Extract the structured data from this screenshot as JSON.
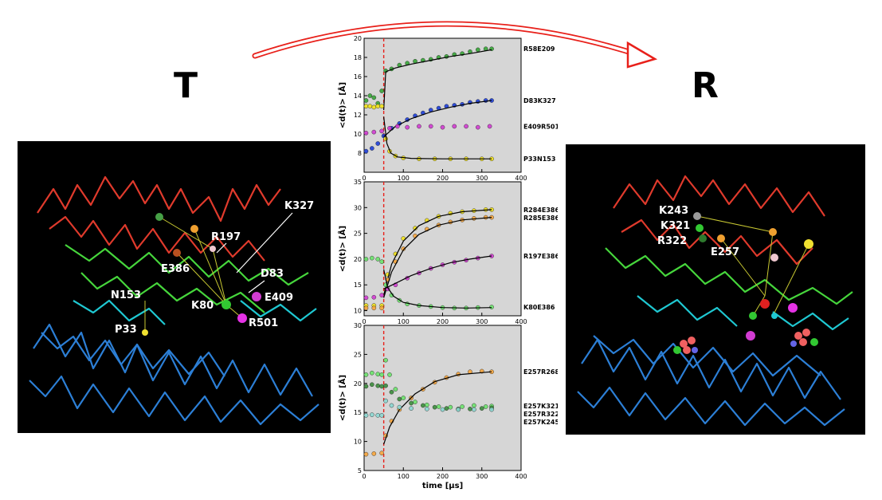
{
  "states": {
    "left": "T",
    "right": "R"
  },
  "structure_left": {
    "labels": [
      "K327",
      "R197",
      "E386",
      "D83",
      "N153",
      "K80",
      "E409",
      "R501",
      "P33"
    ]
  },
  "structure_right": {
    "labels": [
      "K243",
      "K321",
      "R322",
      "E257"
    ]
  },
  "colors": {
    "plot_bg": "#d6d6d6",
    "fit": "#000000",
    "marker": "#e8201a",
    "green": "#37a537",
    "blue": "#1d3ed8",
    "magenta": "#d23cd2",
    "yellow": "#f2e21a",
    "orange": "#f7a53c",
    "lightgreen": "#6ce36c",
    "darkgreen": "#3c8c3c",
    "cyan": "#8cd7d2"
  },
  "chart_data": [
    {
      "type": "scatter",
      "ylabel": "<d(t)> [Å]",
      "xlim": [
        0,
        400
      ],
      "ylim": [
        6,
        20
      ],
      "x_ticks": [
        0,
        100,
        200,
        300,
        400
      ],
      "y_ticks": [
        8,
        10,
        12,
        14,
        16,
        18,
        20
      ],
      "marker_x": 50,
      "series": [
        {
          "name": "R58E209",
          "color": "green",
          "points": [
            [
              5,
              13.5
            ],
            [
              15,
              14
            ],
            [
              25,
              13.8
            ],
            [
              35,
              13.2
            ],
            [
              45,
              14.5
            ],
            [
              55,
              16.6
            ],
            [
              70,
              16.8
            ],
            [
              90,
              17.2
            ],
            [
              110,
              17.4
            ],
            [
              130,
              17.6
            ],
            [
              150,
              17.7
            ],
            [
              170,
              17.8
            ],
            [
              190,
              18.0
            ],
            [
              210,
              18.1
            ],
            [
              230,
              18.3
            ],
            [
              250,
              18.4
            ],
            [
              270,
              18.6
            ],
            [
              290,
              18.8
            ],
            [
              310,
              18.9
            ],
            [
              325,
              18.9
            ]
          ],
          "fit": [
            [
              50,
              12.5
            ],
            [
              55,
              16.5
            ],
            [
              80,
              16.9
            ],
            [
              120,
              17.3
            ],
            [
              170,
              17.7
            ],
            [
              220,
              18.1
            ],
            [
              270,
              18.4
            ],
            [
              325,
              18.8
            ]
          ]
        },
        {
          "name": "D83K327",
          "color": "blue",
          "points": [
            [
              5,
              8.2
            ],
            [
              20,
              8.5
            ],
            [
              35,
              9.0
            ],
            [
              50,
              9.8
            ],
            [
              70,
              10.6
            ],
            [
              90,
              11.1
            ],
            [
              110,
              11.5
            ],
            [
              130,
              11.9
            ],
            [
              150,
              12.2
            ],
            [
              170,
              12.5
            ],
            [
              190,
              12.7
            ],
            [
              210,
              12.9
            ],
            [
              230,
              13.0
            ],
            [
              250,
              13.1
            ],
            [
              270,
              13.3
            ],
            [
              290,
              13.4
            ],
            [
              310,
              13.5
            ],
            [
              325,
              13.5
            ]
          ],
          "fit": [
            [
              50,
              9.7
            ],
            [
              80,
              10.8
            ],
            [
              120,
              11.6
            ],
            [
              170,
              12.3
            ],
            [
              220,
              12.8
            ],
            [
              270,
              13.2
            ],
            [
              325,
              13.5
            ]
          ]
        },
        {
          "name": "E409R501",
          "color": "magenta",
          "points": [
            [
              5,
              10.1
            ],
            [
              25,
              10.2
            ],
            [
              45,
              10.3
            ],
            [
              65,
              10.6
            ],
            [
              85,
              10.8
            ],
            [
              110,
              10.7
            ],
            [
              140,
              10.8
            ],
            [
              170,
              10.8
            ],
            [
              200,
              10.7
            ],
            [
              230,
              10.8
            ],
            [
              260,
              10.8
            ],
            [
              290,
              10.7
            ],
            [
              320,
              10.8
            ]
          ],
          "fit": []
        },
        {
          "name": "P33N153",
          "color": "yellow",
          "points": [
            [
              5,
              12.9
            ],
            [
              15,
              12.9
            ],
            [
              25,
              12.8
            ],
            [
              35,
              12.9
            ],
            [
              45,
              12.9
            ],
            [
              55,
              9.5
            ],
            [
              65,
              8.2
            ],
            [
              80,
              7.7
            ],
            [
              100,
              7.5
            ],
            [
              140,
              7.4
            ],
            [
              180,
              7.4
            ],
            [
              220,
              7.4
            ],
            [
              260,
              7.4
            ],
            [
              300,
              7.4
            ],
            [
              325,
              7.4
            ]
          ],
          "fit": [
            [
              50,
              11.8
            ],
            [
              58,
              9.0
            ],
            [
              68,
              8.0
            ],
            [
              85,
              7.6
            ],
            [
              120,
              7.45
            ],
            [
              200,
              7.4
            ],
            [
              325,
              7.4
            ]
          ]
        }
      ]
    },
    {
      "type": "scatter",
      "ylabel": "<d(t)> [Å]",
      "xlim": [
        0,
        400
      ],
      "ylim": [
        9,
        35
      ],
      "x_ticks": [
        0,
        100,
        200,
        300,
        400
      ],
      "y_ticks": [
        10,
        15,
        20,
        25,
        30,
        35
      ],
      "marker_x": 50,
      "series": [
        {
          "name": "R284E386",
          "color": "yellow",
          "points": [
            [
              5,
              11
            ],
            [
              25,
              11
            ],
            [
              45,
              11
            ],
            [
              60,
              17
            ],
            [
              80,
              21
            ],
            [
              100,
              24
            ],
            [
              130,
              26
            ],
            [
              160,
              27.5
            ],
            [
              190,
              28.3
            ],
            [
              220,
              28.9
            ],
            [
              250,
              29.2
            ],
            [
              280,
              29.4
            ],
            [
              310,
              29.6
            ],
            [
              325,
              29.6
            ]
          ],
          "fit": [
            [
              50,
              13
            ],
            [
              70,
              19
            ],
            [
              100,
              23.5
            ],
            [
              140,
              26.5
            ],
            [
              190,
              28.3
            ],
            [
              250,
              29.2
            ],
            [
              325,
              29.6
            ]
          ]
        },
        {
          "name": "R285E386",
          "color": "orange",
          "points": [
            [
              5,
              10.5
            ],
            [
              25,
              10.5
            ],
            [
              45,
              10.5
            ],
            [
              60,
              16
            ],
            [
              80,
              19.5
            ],
            [
              100,
              22
            ],
            [
              130,
              24.5
            ],
            [
              160,
              25.8
            ],
            [
              190,
              26.6
            ],
            [
              220,
              27.2
            ],
            [
              250,
              27.6
            ],
            [
              280,
              27.9
            ],
            [
              310,
              28.1
            ],
            [
              325,
              28.1
            ]
          ],
          "fit": [
            [
              50,
              12.5
            ],
            [
              70,
              17.5
            ],
            [
              100,
              21.8
            ],
            [
              140,
              24.8
            ],
            [
              190,
              26.6
            ],
            [
              250,
              27.6
            ],
            [
              325,
              28.1
            ]
          ]
        },
        {
          "name": "R197E386",
          "color": "magenta",
          "points": [
            [
              5,
              12.5
            ],
            [
              25,
              12.6
            ],
            [
              45,
              13
            ],
            [
              60,
              14.2
            ],
            [
              80,
              15
            ],
            [
              110,
              16.3
            ],
            [
              140,
              17.3
            ],
            [
              170,
              18.2
            ],
            [
              200,
              18.9
            ],
            [
              230,
              19.4
            ],
            [
              260,
              19.8
            ],
            [
              290,
              20.2
            ],
            [
              325,
              20.6
            ]
          ],
          "fit": [
            [
              50,
              14.2
            ],
            [
              80,
              15.3
            ],
            [
              120,
              16.8
            ],
            [
              170,
              18.2
            ],
            [
              220,
              19.3
            ],
            [
              270,
              20.0
            ],
            [
              325,
              20.6
            ]
          ]
        },
        {
          "name": "K80E386",
          "color": "lightgreen",
          "points": [
            [
              5,
              20
            ],
            [
              20,
              20.2
            ],
            [
              35,
              20
            ],
            [
              45,
              19.5
            ],
            [
              55,
              15
            ],
            [
              70,
              13
            ],
            [
              90,
              12
            ],
            [
              110,
              11.3
            ],
            [
              140,
              11
            ],
            [
              170,
              10.8
            ],
            [
              200,
              10.6
            ],
            [
              230,
              10.5
            ],
            [
              260,
              10.5
            ],
            [
              290,
              10.6
            ],
            [
              325,
              10.7
            ]
          ],
          "fit": [
            [
              50,
              18
            ],
            [
              60,
              14.5
            ],
            [
              75,
              12.8
            ],
            [
              100,
              11.6
            ],
            [
              140,
              11
            ],
            [
              200,
              10.6
            ],
            [
              260,
              10.5
            ],
            [
              325,
              10.6
            ]
          ]
        }
      ]
    },
    {
      "type": "scatter",
      "xlabel": "time [μs]",
      "ylabel": "<d(t)> [Å]",
      "xlim": [
        0,
        400
      ],
      "ylim": [
        5,
        30
      ],
      "x_ticks": [
        0,
        100,
        200,
        300,
        400
      ],
      "y_ticks": [
        5,
        10,
        15,
        20,
        25,
        30
      ],
      "marker_x": 50,
      "series": [
        {
          "name": "E257R268",
          "color": "orange",
          "points": [
            [
              5,
              7.8
            ],
            [
              25,
              7.9
            ],
            [
              45,
              8
            ],
            [
              55,
              11
            ],
            [
              70,
              13.5
            ],
            [
              90,
              15.5
            ],
            [
              120,
              17.5
            ],
            [
              150,
              19
            ],
            [
              180,
              20.2
            ],
            [
              210,
              21
            ],
            [
              240,
              21.6
            ],
            [
              270,
              22
            ],
            [
              300,
              22.1
            ],
            [
              325,
              22
            ]
          ],
          "fit": [
            [
              50,
              9.5
            ],
            [
              65,
              12.5
            ],
            [
              90,
              15.5
            ],
            [
              130,
              18.2
            ],
            [
              180,
              20.3
            ],
            [
              240,
              21.5
            ],
            [
              325,
              22
            ]
          ]
        },
        {
          "name": "E257K321",
          "color": "lightgreen",
          "points": [
            [
              5,
              21.5
            ],
            [
              20,
              21.8
            ],
            [
              35,
              21.6
            ],
            [
              45,
              21.5
            ],
            [
              55,
              24
            ],
            [
              65,
              21.5
            ],
            [
              80,
              19
            ],
            [
              100,
              17.5
            ],
            [
              130,
              16.8
            ],
            [
              160,
              16.3
            ],
            [
              190,
              16
            ],
            [
              220,
              15.9
            ],
            [
              250,
              16
            ],
            [
              280,
              16.2
            ],
            [
              310,
              16
            ],
            [
              325,
              16.1
            ]
          ],
          "fit": []
        },
        {
          "name": "E257R322",
          "color": "darkgreen",
          "points": [
            [
              5,
              19.5
            ],
            [
              20,
              19.8
            ],
            [
              35,
              19.6
            ],
            [
              45,
              19.5
            ],
            [
              55,
              19.6
            ],
            [
              70,
              18.5
            ],
            [
              90,
              17.3
            ],
            [
              120,
              16.6
            ],
            [
              150,
              16.2
            ],
            [
              180,
              15.9
            ],
            [
              210,
              15.7
            ],
            [
              240,
              15.6
            ],
            [
              270,
              15.6
            ],
            [
              300,
              15.7
            ],
            [
              325,
              15.8
            ]
          ],
          "fit": []
        },
        {
          "name": "E257K245",
          "color": "cyan",
          "points": [
            [
              5,
              14.5
            ],
            [
              20,
              14.6
            ],
            [
              35,
              14.5
            ],
            [
              45,
              14.5
            ],
            [
              55,
              17
            ],
            [
              70,
              16.2
            ],
            [
              90,
              15.9
            ],
            [
              120,
              15.7
            ],
            [
              160,
              15.6
            ],
            [
              200,
              15.5
            ],
            [
              240,
              15.5
            ],
            [
              280,
              15.5
            ],
            [
              325,
              15.5
            ]
          ],
          "fit": []
        }
      ]
    }
  ]
}
